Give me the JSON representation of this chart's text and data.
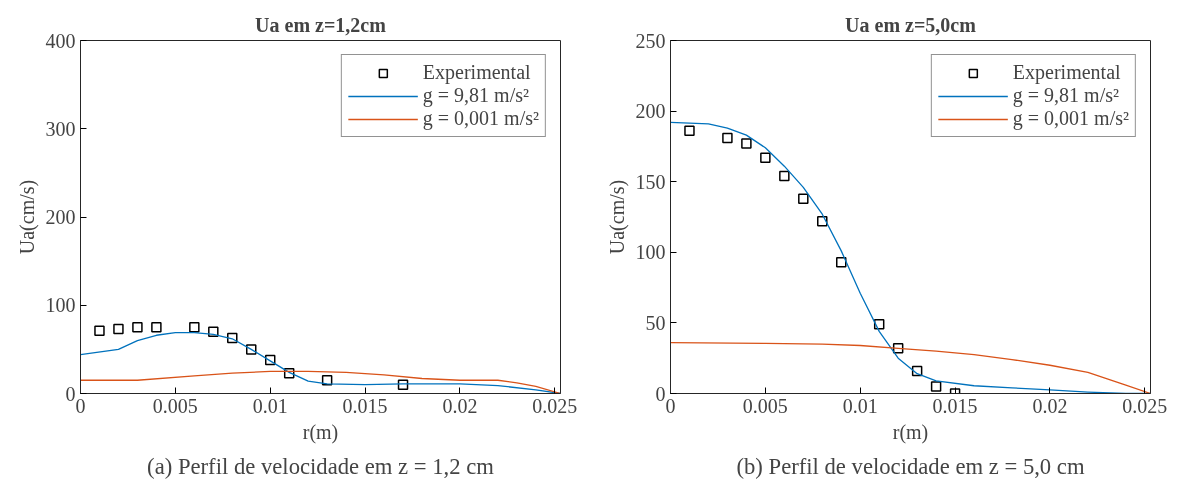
{
  "chart_data": [
    {
      "type": "line",
      "title": "Ua em z=1,2cm",
      "xlabel": "r(m)",
      "ylabel": "Ua(cm/s)",
      "xlim": [
        0,
        0.0253
      ],
      "ylim": [
        0,
        400
      ],
      "xticks": [
        0,
        0.005,
        0.01,
        0.015,
        0.02,
        0.025
      ],
      "yticks": [
        0,
        100,
        200,
        300,
        400
      ],
      "grid": false,
      "legend": "top right",
      "annotations": [
        "(a) Perfil de velocidade em z = 1,2 cm"
      ],
      "series": [
        {
          "name": "Experimental",
          "type": "scatter",
          "marker": "square",
          "color": "#000000",
          "x": [
            0.001,
            0.002,
            0.003,
            0.004,
            0.006,
            0.007,
            0.008,
            0.009,
            0.01,
            0.011,
            0.013,
            0.017
          ],
          "values": [
            71,
            73,
            75,
            75,
            75,
            70,
            63,
            50,
            38,
            23,
            15,
            10
          ]
        },
        {
          "name": "g = 9,81 m/s²",
          "color": "#0072bd",
          "x": [
            0,
            0.002,
            0.003,
            0.004,
            0.005,
            0.006,
            0.007,
            0.008,
            0.009,
            0.01,
            0.011,
            0.012,
            0.013,
            0.015,
            0.017,
            0.02,
            0.022,
            0.024,
            0.0253
          ],
          "values": [
            44,
            50,
            60,
            66,
            69,
            69,
            67,
            62,
            50,
            37,
            24,
            14,
            11,
            10,
            11,
            11,
            9,
            4,
            0
          ]
        },
        {
          "name": "g = 0,001 m/s²",
          "color": "#d95319",
          "x": [
            0,
            0.003,
            0.006,
            0.008,
            0.01,
            0.012,
            0.014,
            0.016,
            0.018,
            0.02,
            0.022,
            0.023,
            0.024,
            0.0253
          ],
          "values": [
            15,
            15,
            20,
            23,
            25,
            25,
            24,
            21,
            17,
            15,
            15,
            12,
            8,
            0
          ]
        }
      ]
    },
    {
      "type": "line",
      "title": "Ua em z=5,0cm",
      "xlabel": "r(m)",
      "ylabel": "Ua(cm/s)",
      "xlim": [
        0,
        0.0253
      ],
      "ylim": [
        0,
        250
      ],
      "xticks": [
        0,
        0.005,
        0.01,
        0.015,
        0.02,
        0.025
      ],
      "yticks": [
        0,
        50,
        100,
        150,
        200,
        250
      ],
      "grid": false,
      "legend": "top right",
      "annotations": [
        "(b) Perfil de velocidade em z = 5,0 cm"
      ],
      "series": [
        {
          "name": "Experimental",
          "type": "scatter",
          "marker": "square",
          "color": "#000000",
          "x": [
            0.001,
            0.003,
            0.004,
            0.005,
            0.006,
            0.007,
            0.008,
            0.009,
            0.011,
            0.012,
            0.013,
            0.014,
            0.015
          ],
          "values": [
            186,
            181,
            177,
            167,
            154,
            138,
            122,
            93,
            49,
            32,
            16,
            5,
            0
          ]
        },
        {
          "name": "g = 9,81 m/s²",
          "color": "#0072bd",
          "x": [
            0,
            0.002,
            0.003,
            0.004,
            0.005,
            0.006,
            0.007,
            0.008,
            0.009,
            0.01,
            0.011,
            0.012,
            0.013,
            0.014,
            0.016,
            0.018,
            0.02,
            0.022,
            0.024,
            0.0253
          ],
          "values": [
            192,
            191,
            188,
            183,
            174,
            161,
            146,
            127,
            101,
            71,
            44,
            25,
            14,
            9,
            5.5,
            4,
            2.5,
            1,
            0,
            0
          ]
        },
        {
          "name": "g = 0,001 m/s²",
          "color": "#d95319",
          "x": [
            0,
            0.005,
            0.008,
            0.01,
            0.012,
            0.014,
            0.016,
            0.018,
            0.02,
            0.022,
            0.024,
            0.0253
          ],
          "values": [
            36,
            35.5,
            35,
            34,
            32,
            30,
            27.5,
            24,
            20,
            15,
            6,
            0
          ]
        }
      ]
    }
  ]
}
